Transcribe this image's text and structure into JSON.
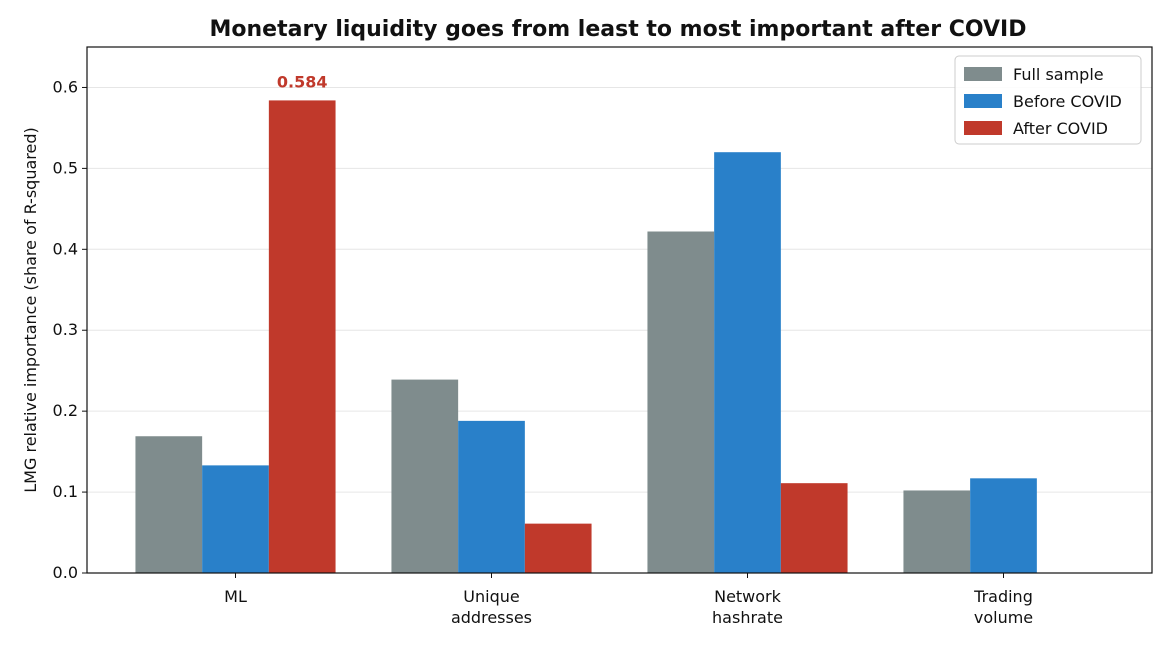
{
  "chart_data": {
    "type": "bar",
    "title": "Monetary liquidity goes from least to most important after COVID",
    "xlabel": "",
    "ylabel": "LMG relative importance (share of R-squared)",
    "ylim": [
      0,
      0.65
    ],
    "yticks": [
      "0.0",
      "0.1",
      "0.2",
      "0.3",
      "0.4",
      "0.5",
      "0.6"
    ],
    "categories": [
      [
        "ML"
      ],
      [
        "Unique",
        "addresses"
      ],
      [
        "Network",
        "hashrate"
      ],
      [
        "Trading",
        "volume"
      ]
    ],
    "series": [
      {
        "name": "Full sample",
        "color": "#7f8c8d",
        "values": [
          0.169,
          0.239,
          0.422,
          0.102
        ]
      },
      {
        "name": "Before COVID",
        "color": "#2980c9",
        "values": [
          0.133,
          0.188,
          0.52,
          0.117
        ]
      },
      {
        "name": "After COVID",
        "color": "#c0392b",
        "values": [
          0.584,
          0.061,
          0.111,
          0.0
        ]
      }
    ],
    "annotations": [
      {
        "text": "0.584",
        "category_index": 0,
        "series_index": 2,
        "color": "#c0392b"
      }
    ],
    "grid": "horizontal",
    "legend_position": "top-right"
  }
}
